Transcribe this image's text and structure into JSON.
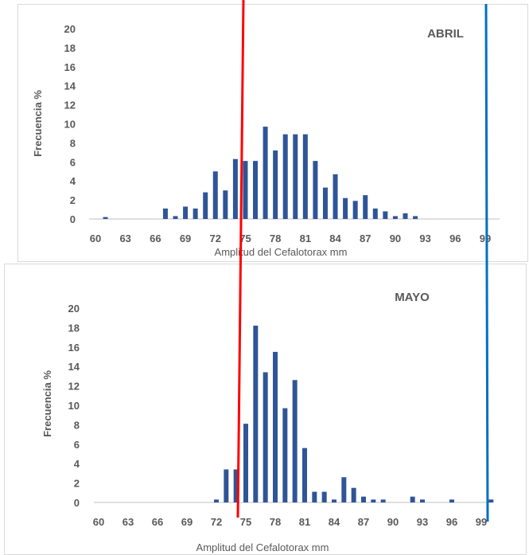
{
  "chart_data": [
    {
      "type": "bar",
      "title": "ABRIL",
      "xlabel": "Amplitud del Cefalotorax mm",
      "ylabel": "Frecuencia %",
      "ylim": [
        0,
        20
      ],
      "yticks": [
        "0",
        "2",
        "4",
        "6",
        "8",
        "10",
        "12",
        "14",
        "16",
        "18",
        "20"
      ],
      "xticks": [
        "60",
        "63",
        "66",
        "69",
        "72",
        "75",
        "78",
        "81",
        "84",
        "87",
        "90",
        "93",
        "96",
        "99"
      ],
      "x": [
        61,
        62,
        63,
        64,
        65,
        66,
        67,
        68,
        69,
        70,
        71,
        72,
        73,
        74,
        75,
        76,
        77,
        78,
        79,
        80,
        81,
        82,
        83,
        84,
        85,
        86,
        87,
        88,
        89,
        90,
        91,
        92
      ],
      "values": [
        0.2,
        0,
        0,
        0,
        0,
        0,
        1.1,
        0.3,
        1.3,
        1.1,
        2.8,
        5.0,
        3.0,
        6.3,
        6.1,
        6.1,
        9.7,
        7.2,
        8.9,
        8.9,
        8.9,
        6.1,
        3.3,
        4.7,
        2.2,
        1.9,
        2.5,
        1.1,
        0.8,
        0.3,
        0.6,
        0.3
      ],
      "color": "#2f5597",
      "grid": false
    },
    {
      "type": "bar",
      "title": "MAYO",
      "xlabel": "Amplitud del Cefalotorax mm",
      "ylabel": "Frecuencia %",
      "ylim": [
        0,
        20
      ],
      "yticks": [
        "0",
        "2",
        "4",
        "6",
        "8",
        "10",
        "12",
        "14",
        "16",
        "18",
        "20"
      ],
      "xticks": [
        "60",
        "63",
        "66",
        "69",
        "72",
        "75",
        "78",
        "81",
        "84",
        "87",
        "90",
        "93",
        "96",
        "99"
      ],
      "x": [
        72,
        73,
        74,
        75,
        76,
        77,
        78,
        79,
        80,
        81,
        82,
        83,
        84,
        85,
        86,
        87,
        88,
        89,
        90,
        91,
        92,
        93,
        94,
        95,
        96,
        97,
        98,
        99,
        100
      ],
      "values": [
        0.3,
        3.4,
        3.4,
        8.1,
        18.2,
        13.4,
        15.5,
        9.7,
        12.6,
        5.6,
        1.1,
        1.1,
        0.3,
        2.6,
        1.5,
        0.6,
        0.3,
        0.3,
        0,
        0,
        0.6,
        0.3,
        0,
        0,
        0.3,
        0,
        0,
        0,
        0.3
      ],
      "color": "#2f5597",
      "grid": false
    }
  ],
  "overlay": {
    "red_line_color": "#ff0000",
    "blue_line_color": "#0070c0"
  }
}
